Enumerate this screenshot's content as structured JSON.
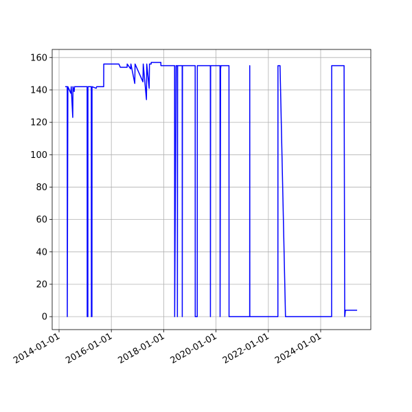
{
  "chart_data": {
    "type": "line",
    "color": "#0000ff",
    "grid": true,
    "xlim": [
      "2013-09-27",
      "2025-12-01"
    ],
    "xticks": [
      "2014-01-01",
      "2016-01-01",
      "2018-01-01",
      "2020-01-01",
      "2022-01-01",
      "2024-01-01"
    ],
    "ylim": [
      -8,
      165
    ],
    "yticks": [
      0,
      20,
      40,
      60,
      80,
      100,
      120,
      140,
      160
    ],
    "x": [
      "2014-03-28",
      "2014-04-25",
      "2014-04-26",
      "2014-05-04",
      "2014-06-13",
      "2014-06-20",
      "2014-07-11",
      "2014-07-14",
      "2014-07-31",
      "2014-08-05",
      "2015-01-28",
      "2015-01-29",
      "2015-02-07",
      "2015-02-08",
      "2015-03-27",
      "2015-03-28",
      "2015-04-05",
      "2015-04-06",
      "2015-06-03",
      "2015-06-10",
      "2015-09-16",
      "2015-09-17",
      "2016-04-15",
      "2016-05-05",
      "2016-08-08",
      "2016-08-09",
      "2016-09-26",
      "2016-09-30",
      "2016-11-23",
      "2016-11-27",
      "2017-03-17",
      "2017-03-21",
      "2017-05-05",
      "2017-05-09",
      "2017-06-12",
      "2017-06-16",
      "2017-07-10",
      "2017-07-11",
      "2017-11-22",
      "2017-11-23",
      "2018-06-02",
      "2018-06-03",
      "2018-06-22",
      "2018-07-10",
      "2018-07-11",
      "2018-07-14",
      "2018-09-16",
      "2018-09-17",
      "2018-09-20",
      "2019-03-16",
      "2019-03-17",
      "2019-04-14",
      "2019-04-15",
      "2019-10-14",
      "2019-10-15",
      "2019-10-18",
      "2020-02-26",
      "2020-02-27",
      "2020-03-05",
      "2020-03-10",
      "2020-06-30",
      "2020-07-01",
      "2021-04-15",
      "2021-04-16",
      "2021-04-17",
      "2022-05-14",
      "2022-05-15",
      "2022-06-13",
      "2022-08-28",
      "2024-06-02",
      "2024-06-03",
      "2024-11-23",
      "2024-12-02",
      "2024-12-12",
      "2025-05-24"
    ],
    "values": [
      142,
      142,
      0,
      142,
      138,
      142,
      123,
      142,
      139,
      142,
      142,
      0,
      0,
      142,
      142,
      0,
      0,
      142,
      141,
      142,
      142,
      156,
      156,
      154,
      154,
      156,
      153,
      156,
      144,
      156,
      145,
      156,
      134,
      156,
      141,
      156,
      156,
      157,
      157,
      155,
      155,
      0,
      155,
      155,
      0,
      155,
      155,
      0,
      155,
      155,
      0,
      0,
      155,
      155,
      0,
      155,
      155,
      0,
      153,
      155,
      155,
      0,
      0,
      155,
      0,
      0,
      155,
      155,
      0,
      0,
      155,
      155,
      0,
      4,
      4
    ]
  }
}
